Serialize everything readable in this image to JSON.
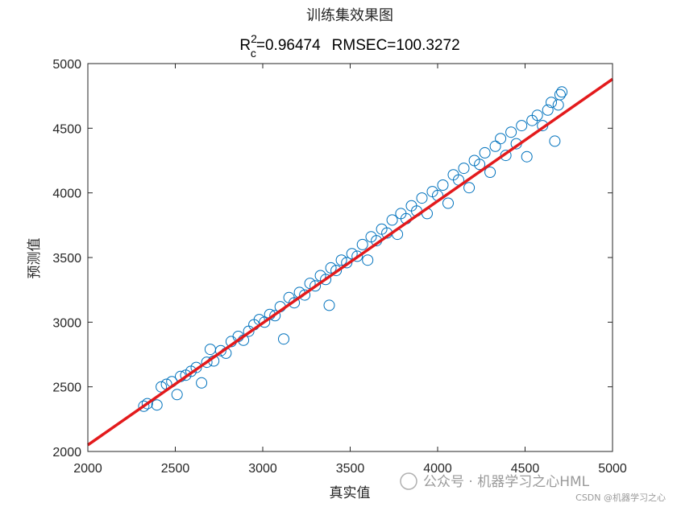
{
  "chart_data": {
    "type": "scatter",
    "title": "训练集效果图",
    "subtitle": {
      "r_base": "R",
      "r_sub": "c",
      "r_sup": "2",
      "r2_value": "=0.96474",
      "rmse_label": "RMSEC=100.3272"
    },
    "xlabel": "真实值",
    "ylabel": "预测值",
    "xlim": [
      2000,
      5000
    ],
    "ylim": [
      2000,
      5000
    ],
    "xticks": [
      2000,
      2500,
      3000,
      3500,
      4000,
      4500,
      5000
    ],
    "yticks": [
      2000,
      2500,
      3000,
      3500,
      4000,
      4500,
      5000
    ],
    "grid": false,
    "legend": "none",
    "marker_color": "#0072BD",
    "fit_line_color": "#E31A1C",
    "fit_line": {
      "x": [
        2000,
        5000
      ],
      "y": [
        2050,
        4880
      ]
    },
    "series": [
      {
        "points": [
          [
            2320,
            2350
          ],
          [
            2340,
            2370
          ],
          [
            2395,
            2360
          ],
          [
            2420,
            2500
          ],
          [
            2450,
            2520
          ],
          [
            2480,
            2540
          ],
          [
            2510,
            2440
          ],
          [
            2530,
            2580
          ],
          [
            2560,
            2590
          ],
          [
            2590,
            2620
          ],
          [
            2620,
            2650
          ],
          [
            2650,
            2530
          ],
          [
            2680,
            2690
          ],
          [
            2700,
            2790
          ],
          [
            2720,
            2700
          ],
          [
            2760,
            2780
          ],
          [
            2790,
            2760
          ],
          [
            2820,
            2850
          ],
          [
            2860,
            2890
          ],
          [
            2890,
            2860
          ],
          [
            2920,
            2930
          ],
          [
            2950,
            2980
          ],
          [
            2980,
            3020
          ],
          [
            3010,
            3000
          ],
          [
            3040,
            3060
          ],
          [
            3070,
            3050
          ],
          [
            3100,
            3120
          ],
          [
            3120,
            2870
          ],
          [
            3150,
            3190
          ],
          [
            3180,
            3150
          ],
          [
            3210,
            3230
          ],
          [
            3240,
            3210
          ],
          [
            3270,
            3300
          ],
          [
            3300,
            3280
          ],
          [
            3330,
            3360
          ],
          [
            3360,
            3330
          ],
          [
            3380,
            3130
          ],
          [
            3390,
            3420
          ],
          [
            3420,
            3400
          ],
          [
            3450,
            3480
          ],
          [
            3480,
            3460
          ],
          [
            3510,
            3530
          ],
          [
            3540,
            3510
          ],
          [
            3570,
            3600
          ],
          [
            3600,
            3480
          ],
          [
            3620,
            3660
          ],
          [
            3650,
            3630
          ],
          [
            3680,
            3720
          ],
          [
            3710,
            3690
          ],
          [
            3740,
            3790
          ],
          [
            3770,
            3680
          ],
          [
            3790,
            3840
          ],
          [
            3820,
            3800
          ],
          [
            3850,
            3900
          ],
          [
            3880,
            3860
          ],
          [
            3910,
            3960
          ],
          [
            3940,
            3840
          ],
          [
            3970,
            4010
          ],
          [
            4000,
            3980
          ],
          [
            4030,
            4060
          ],
          [
            4060,
            3920
          ],
          [
            4090,
            4140
          ],
          [
            4120,
            4100
          ],
          [
            4150,
            4190
          ],
          [
            4180,
            4040
          ],
          [
            4210,
            4250
          ],
          [
            4240,
            4220
          ],
          [
            4270,
            4310
          ],
          [
            4300,
            4160
          ],
          [
            4330,
            4360
          ],
          [
            4360,
            4420
          ],
          [
            4390,
            4290
          ],
          [
            4420,
            4470
          ],
          [
            4450,
            4380
          ],
          [
            4480,
            4520
          ],
          [
            4510,
            4280
          ],
          [
            4540,
            4560
          ],
          [
            4570,
            4600
          ],
          [
            4600,
            4520
          ],
          [
            4630,
            4640
          ],
          [
            4650,
            4700
          ],
          [
            4670,
            4400
          ],
          [
            4690,
            4680
          ],
          [
            4700,
            4760
          ],
          [
            4710,
            4780
          ]
        ]
      }
    ]
  },
  "watermark": {
    "main": "公众号 · 机器学习之心HML",
    "credit": "CSDN @机器学习之心"
  }
}
